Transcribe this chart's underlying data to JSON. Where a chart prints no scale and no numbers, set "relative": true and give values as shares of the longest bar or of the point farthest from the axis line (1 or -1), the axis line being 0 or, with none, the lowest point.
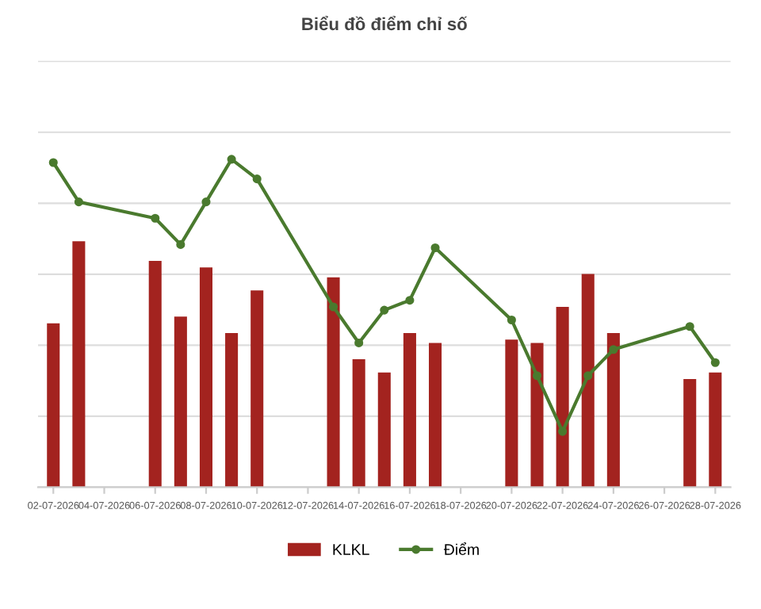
{
  "chart_data": {
    "type": "bar",
    "title": "Biểu đồ điểm chỉ số",
    "relative": true,
    "grid": "y",
    "legend": "bottom",
    "categories": [
      "02-07-2026",
      null,
      "04-07-2026",
      null,
      "06-07-2026",
      null,
      "08-07-2026",
      null,
      "10-07-2026",
      null,
      "12-07-2026",
      null,
      "14-07-2026",
      null,
      "16-07-2026",
      null,
      "18-07-2026",
      null,
      "20-07-2026",
      null,
      "22-07-2026",
      null,
      "24-07-2026",
      null,
      "26-07-2026",
      null,
      "28-07-2026"
    ],
    "series": [
      {
        "name": "KLKL",
        "color": "#a3231f",
        "values": [
          0.5,
          0.75,
          null,
          null,
          0.69,
          0.52,
          0.67,
          0.47,
          0.6,
          null,
          null,
          0.64,
          0.39,
          0.35,
          0.47,
          0.44,
          null,
          null,
          0.45,
          0.44,
          0.55,
          0.65,
          0.47,
          null,
          null,
          0.33,
          0.35
        ]
      },
      {
        "name": "Điểm",
        "type": "line",
        "color": "#4a7a2e",
        "marker": "circle",
        "line_style": "solid",
        "values": [
          0.99,
          0.87,
          null,
          null,
          0.82,
          0.74,
          0.87,
          1.0,
          0.94,
          null,
          null,
          0.55,
          0.44,
          0.54,
          0.57,
          0.73,
          null,
          null,
          0.51,
          0.34,
          0.17,
          0.34,
          0.42,
          null,
          null,
          0.49,
          0.38
        ]
      }
    ]
  }
}
